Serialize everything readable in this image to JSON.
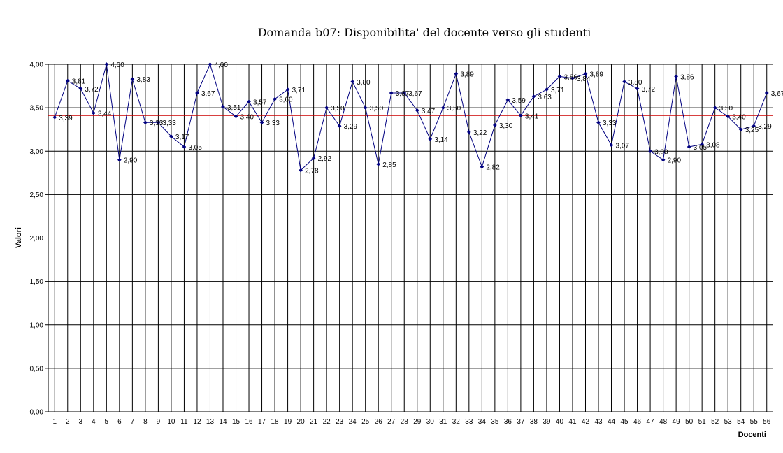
{
  "chart_data": {
    "type": "line",
    "title": "Domanda b07: Disponibilita' del docente verso gli studenti",
    "xlabel": "Docenti",
    "ylabel": "Valori",
    "ylim": [
      0,
      4
    ],
    "yticks": [
      "0,00",
      "0,50",
      "1,00",
      "1,50",
      "2,00",
      "2,50",
      "3,00",
      "3,50",
      "4,00"
    ],
    "ytick_values": [
      0,
      0.5,
      1,
      1.5,
      2,
      2.5,
      3,
      3.5,
      4
    ],
    "grid": true,
    "legend": "none",
    "categories": [
      "1",
      "2",
      "3",
      "4",
      "5",
      "6",
      "7",
      "8",
      "9",
      "10",
      "11",
      "12",
      "13",
      "14",
      "15",
      "16",
      "17",
      "18",
      "19",
      "20",
      "21",
      "22",
      "23",
      "24",
      "25",
      "26",
      "27",
      "28",
      "29",
      "30",
      "31",
      "32",
      "33",
      "34",
      "35",
      "36",
      "37",
      "38",
      "39",
      "40",
      "41",
      "42",
      "43",
      "44",
      "45",
      "46",
      "47",
      "48",
      "49",
      "50",
      "51",
      "52",
      "53",
      "54",
      "55",
      "56"
    ],
    "values": [
      3.39,
      3.81,
      3.72,
      3.44,
      4.0,
      2.9,
      3.83,
      3.33,
      3.33,
      3.17,
      3.05,
      3.67,
      4.0,
      3.51,
      3.4,
      3.57,
      3.33,
      3.6,
      3.71,
      2.78,
      2.92,
      3.5,
      3.29,
      3.8,
      3.5,
      2.85,
      3.67,
      3.67,
      3.47,
      3.14,
      3.5,
      3.89,
      3.22,
      2.82,
      3.3,
      3.59,
      3.41,
      3.63,
      3.71,
      3.86,
      3.84,
      3.89,
      3.33,
      3.07,
      3.8,
      3.72,
      3.0,
      2.9,
      3.86,
      3.05,
      3.08,
      3.5,
      3.4,
      3.25,
      3.29,
      3.67
    ],
    "labels": [
      "3,39",
      "3,81",
      "3,72",
      "3,44",
      "4,00",
      "2,90",
      "3,83",
      "3,33",
      "3,33",
      "3,17",
      "3,05",
      "3,67",
      "4,00",
      "3,51",
      "3,40",
      "3,57",
      "3,33",
      "3,60",
      "3,71",
      "2,78",
      "2,92",
      "3,50",
      "3,29",
      "3,80",
      "3,50",
      "2,85",
      "3,67",
      "3,67",
      "3,47",
      "3,14",
      "3,50",
      "3,89",
      "3,22",
      "2,82",
      "3,30",
      "3,59",
      "3,41",
      "3,63",
      "3,71",
      "3,86",
      "3,84",
      "3,89",
      "3,33",
      "3,07",
      "3,80",
      "3,72",
      "3,00",
      "2,90",
      "3,86",
      "3,05",
      "3,08",
      "3,50",
      "3,40",
      "3,25",
      "3,29",
      "3,67"
    ],
    "reference_line": 3.41,
    "colors": {
      "series": "#000080",
      "reference": "#cc0000",
      "grid": "#000000"
    }
  }
}
